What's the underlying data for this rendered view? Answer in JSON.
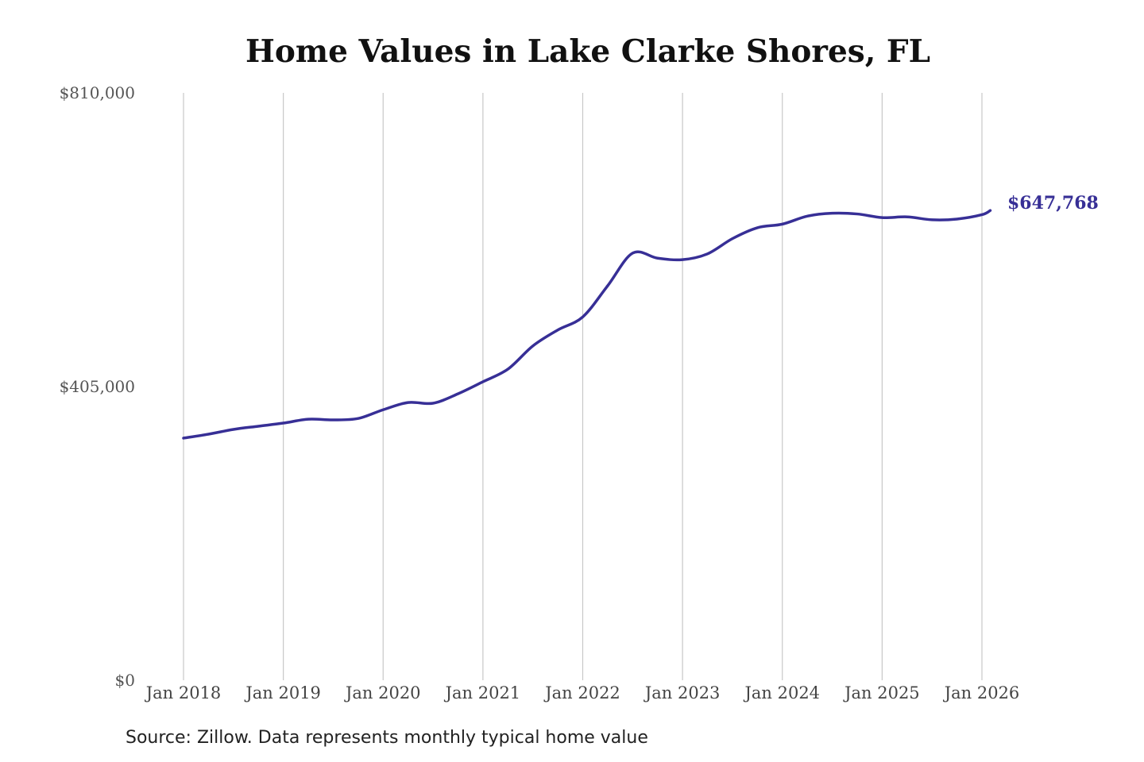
{
  "chart_data": {
    "type": "line",
    "title": "Home Values in Lake Clarke Shores, FL",
    "xlabel": "",
    "ylabel": "",
    "ylim": [
      0,
      810000
    ],
    "y_ticks": [
      0,
      405000,
      810000
    ],
    "y_tick_labels": [
      "$0",
      "$405,000",
      "$810,000"
    ],
    "x_ticks": [
      "2018-01",
      "2019-01",
      "2020-01",
      "2021-01",
      "2022-01",
      "2023-01",
      "2024-01",
      "2025-01",
      "2026-01"
    ],
    "x_tick_labels": [
      "Jan 2018",
      "Jan 2019",
      "Jan 2020",
      "Jan 2021",
      "Jan 2022",
      "Jan 2023",
      "Jan 2024",
      "Jan 2025",
      "Jan 2026"
    ],
    "grid": "vertical",
    "line_color": "#372f96",
    "series": [
      {
        "x": [
          "2018-01",
          "2018-04",
          "2018-07",
          "2018-10",
          "2019-01",
          "2019-04",
          "2019-07",
          "2019-10",
          "2020-01",
          "2020-04",
          "2020-07",
          "2020-10",
          "2021-01",
          "2021-04",
          "2021-07",
          "2021-10",
          "2022-01",
          "2022-04",
          "2022-07",
          "2022-10",
          "2023-01",
          "2023-04",
          "2023-07",
          "2023-10",
          "2024-01",
          "2024-04",
          "2024-07",
          "2024-10",
          "2025-01",
          "2025-04",
          "2025-07",
          "2025-10",
          "2026-01",
          "2026-02"
        ],
        "values": [
          333900,
          339300,
          345900,
          350300,
          354600,
          360000,
          359000,
          361000,
          373000,
          383000,
          382000,
          395000,
          411600,
          429000,
          461000,
          483000,
          501000,
          544000,
          589000,
          582000,
          580000,
          588000,
          609000,
          624000,
          629000,
          640000,
          644000,
          643000,
          638000,
          639000,
          635000,
          636000,
          642000,
          647768
        ]
      }
    ],
    "end_label": "$647,768",
    "source": "Source: Zillow. Data represents monthly typical home value"
  }
}
